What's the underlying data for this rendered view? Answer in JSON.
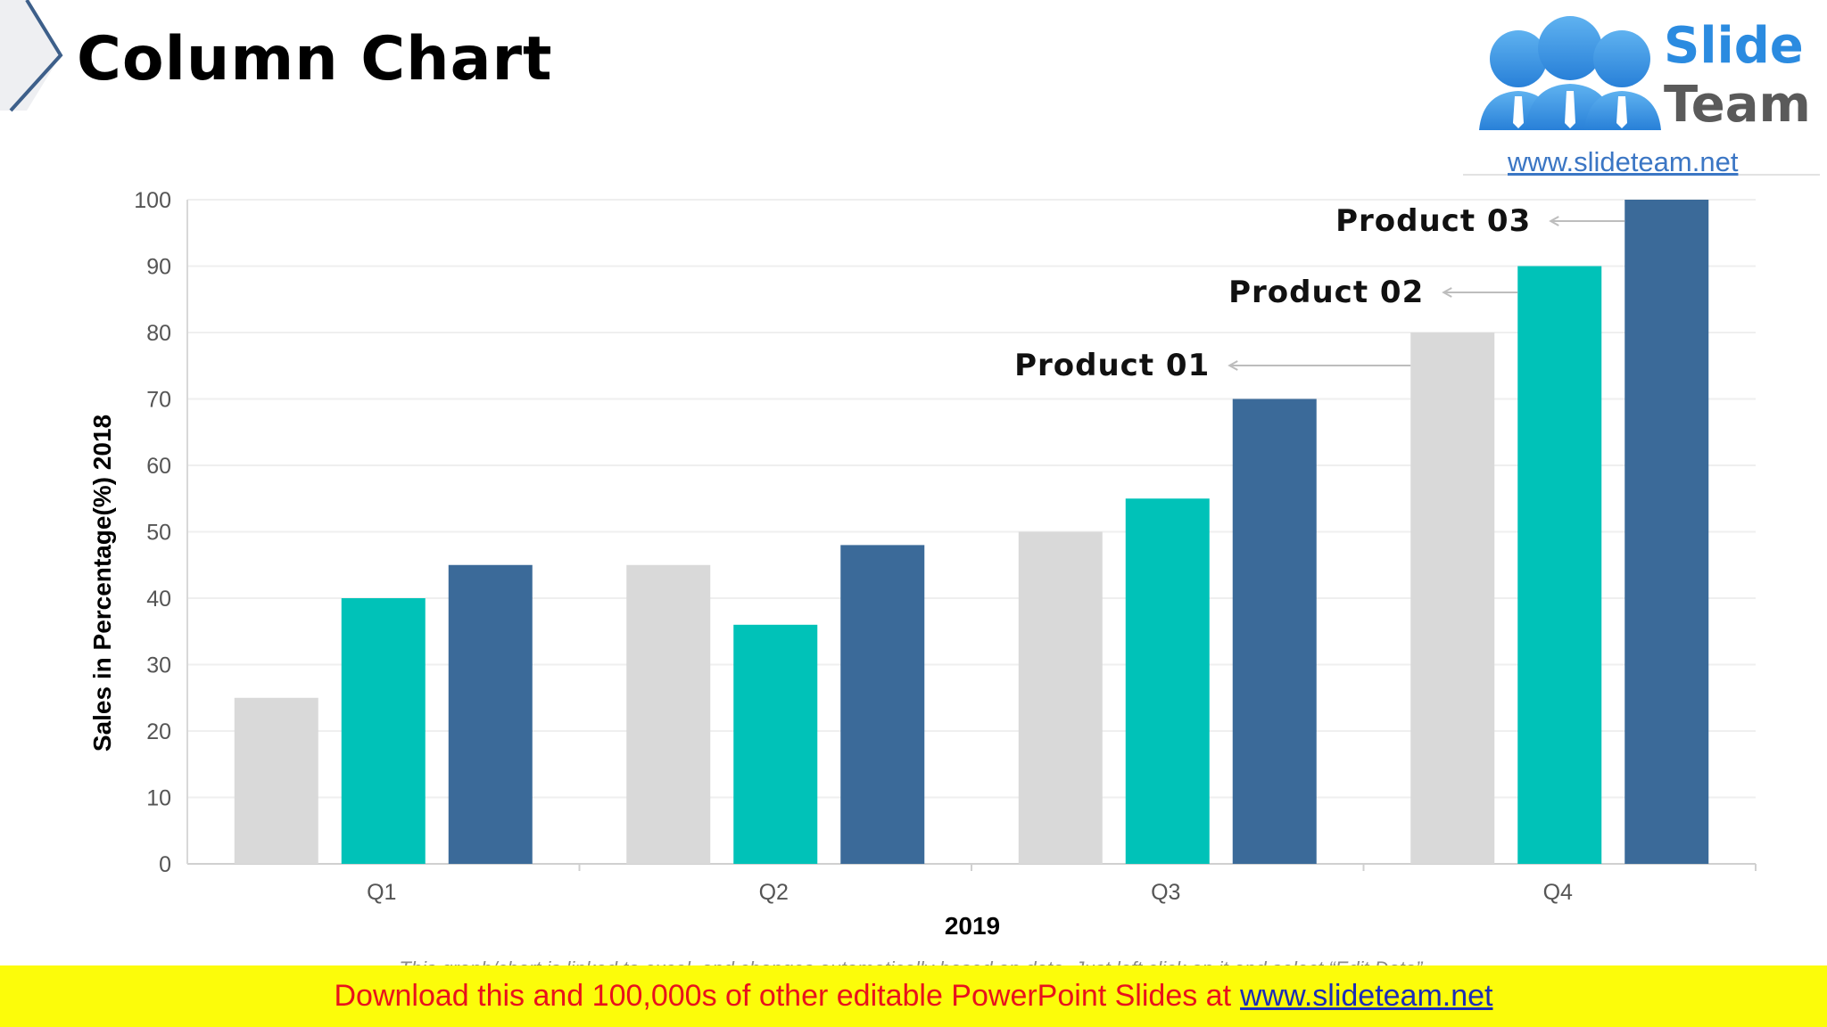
{
  "page": {
    "title": "Column Chart"
  },
  "logo": {
    "word1": "Slide",
    "word2": "Team",
    "url": "www.slideteam.net"
  },
  "chart_data": {
    "type": "bar",
    "categories": [
      "Q1",
      "Q2",
      "Q3",
      "Q4"
    ],
    "series": [
      {
        "name": "Product 01",
        "values": [
          25,
          45,
          50,
          80
        ],
        "color": "#d9d9d9"
      },
      {
        "name": "Product 02",
        "values": [
          40,
          36,
          55,
          90
        ],
        "color": "#00c2b8"
      },
      {
        "name": "Product 03",
        "values": [
          45,
          48,
          70,
          100
        ],
        "color": "#3b6a99"
      }
    ],
    "xlabel": "2019",
    "ylabel": "Sales in Percentage(%) 2018",
    "ylim": [
      0,
      100
    ],
    "yticks": [
      0,
      10,
      20,
      30,
      40,
      50,
      60,
      70,
      80,
      90,
      100
    ],
    "grid": true,
    "legend": "annotations"
  },
  "caption": "This graph/chart is linked to excel, and changes automatically based on data. Just left click on it and select “Edit Data”.",
  "banner": {
    "text": "Download this and 100,000s of other editable PowerPoint Slides at",
    "link": "www.slideteam.net"
  }
}
